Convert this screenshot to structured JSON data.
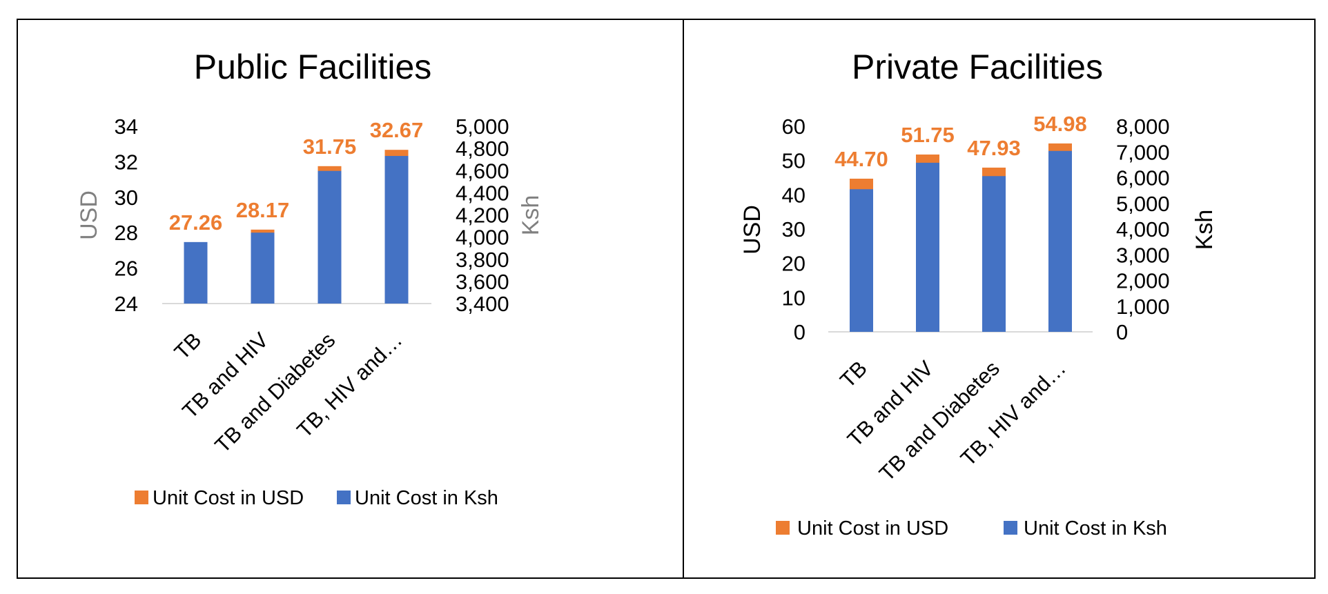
{
  "colors": {
    "usd": "#ED7D31",
    "ksh": "#4472C4",
    "axis_line": "#D9D9D9",
    "grey_label": "#808080"
  },
  "chart_data": [
    {
      "type": "bar",
      "title": "Public Facilities",
      "categories": [
        "TB",
        "TB and HIV",
        "TB and Diabetes",
        "TB, HIV and…"
      ],
      "series": [
        {
          "name": "Unit Cost in USD",
          "axis": "left",
          "values": [
            27.26,
            28.17,
            31.75,
            32.67
          ],
          "data_labels": [
            "27.26",
            "28.17",
            "31.75",
            "32.67"
          ]
        },
        {
          "name": "Unit Cost in Ksh",
          "axis": "right",
          "values": [
            3955,
            4040,
            4597,
            4732
          ]
        }
      ],
      "ylabel": "USD",
      "y2label": "Ksh",
      "ylim": [
        24,
        34
      ],
      "y2lim": [
        3400,
        5000
      ],
      "yticks": [
        "24",
        "26",
        "28",
        "30",
        "32",
        "34"
      ],
      "y2ticks": [
        "3,400",
        "3,600",
        "3,800",
        "4,000",
        "4,200",
        "4,400",
        "4,600",
        "4,800",
        "5,000"
      ],
      "legend": "bottom",
      "axis_label_color": "grey",
      "grid": false
    },
    {
      "type": "bar",
      "title": "Private Facilities",
      "categories": [
        "TB",
        "TB and HIV",
        "TB and Diabetes",
        "TB, HIV and…"
      ],
      "series": [
        {
          "name": "Unit Cost in USD",
          "axis": "left",
          "values": [
            44.7,
            51.75,
            47.93,
            54.98
          ],
          "data_labels": [
            "44.70",
            "51.75",
            "47.93",
            "54.98"
          ]
        },
        {
          "name": "Unit Cost in Ksh",
          "axis": "right",
          "values": [
            5550,
            6580,
            6060,
            7040
          ]
        }
      ],
      "ylabel": "USD",
      "y2label": "Ksh",
      "ylim": [
        0,
        60
      ],
      "y2lim": [
        0,
        8000
      ],
      "yticks": [
        "0",
        "10",
        "20",
        "30",
        "40",
        "50",
        "60"
      ],
      "y2ticks": [
        "0",
        "1,000",
        "2,000",
        "3,000",
        "4,000",
        "5,000",
        "6,000",
        "7,000",
        "8,000"
      ],
      "legend": "bottom",
      "axis_label_color": "black",
      "grid": false
    }
  ]
}
